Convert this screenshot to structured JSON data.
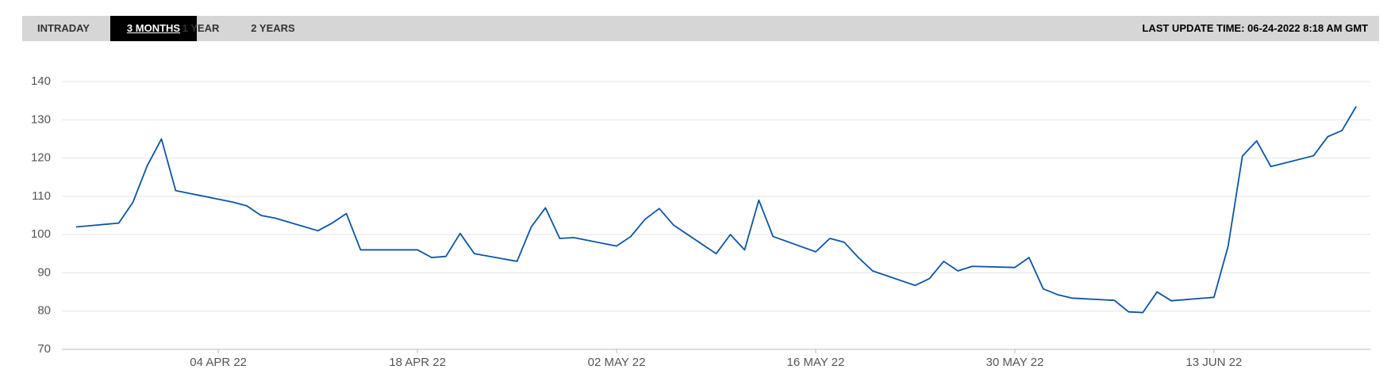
{
  "tabs": [
    "INTRADAY",
    "3 MONTHS",
    "1 YEAR",
    "2 YEARS"
  ],
  "active_tab": 1,
  "last_update": "LAST UPDATE TIME: 06-24-2022 8:18 AM GMT",
  "chart_data": {
    "type": "line",
    "x": [
      "2022-03-25",
      "2022-03-28",
      "2022-03-29",
      "2022-03-30",
      "2022-03-31",
      "2022-04-01",
      "2022-04-05",
      "2022-04-06",
      "2022-04-07",
      "2022-04-08",
      "2022-04-11",
      "2022-04-12",
      "2022-04-13",
      "2022-04-14",
      "2022-04-18",
      "2022-04-19",
      "2022-04-20",
      "2022-04-21",
      "2022-04-22",
      "2022-04-25",
      "2022-04-26",
      "2022-04-27",
      "2022-04-28",
      "2022-04-29",
      "2022-05-02",
      "2022-05-03",
      "2022-05-04",
      "2022-05-05",
      "2022-05-06",
      "2022-05-09",
      "2022-05-10",
      "2022-05-11",
      "2022-05-12",
      "2022-05-13",
      "2022-05-16",
      "2022-05-17",
      "2022-05-18",
      "2022-05-19",
      "2022-05-20",
      "2022-05-23",
      "2022-05-24",
      "2022-05-25",
      "2022-05-26",
      "2022-05-27",
      "2022-05-30",
      "2022-05-31",
      "2022-06-01",
      "2022-06-02",
      "2022-06-03",
      "2022-06-06",
      "2022-06-07",
      "2022-06-08",
      "2022-06-09",
      "2022-06-10",
      "2022-06-13",
      "2022-06-14",
      "2022-06-15",
      "2022-06-16",
      "2022-06-17",
      "2022-06-20",
      "2022-06-21",
      "2022-06-22",
      "2022-06-23"
    ],
    "series": [
      {
        "color": "#0b55a6",
        "values": [
          102,
          103,
          108.5,
          118,
          125,
          111.5,
          108.5,
          107.5,
          105,
          104.3,
          101,
          103,
          105.5,
          96,
          96,
          94,
          94.3,
          100.3,
          95,
          93,
          102,
          107,
          99,
          99.2,
          97,
          99.5,
          104,
          106.8,
          102.5,
          95,
          100,
          96,
          109,
          99.5,
          95.5,
          99,
          98,
          94,
          90.5,
          86.7,
          88.5,
          93,
          90.5,
          91.7,
          91.4,
          94,
          85.8,
          84.3,
          83.4,
          82.8,
          79.8,
          79.6,
          85,
          82.7,
          83.6,
          97,
          120.5,
          124.5,
          117.8,
          120.6,
          125.6,
          127.2,
          133.5
        ]
      }
    ],
    "xlim": [
      "2022-03-24",
      "2022-06-24"
    ],
    "xticks": [
      {
        "value": "2022-04-04",
        "label": "04 APR 22"
      },
      {
        "value": "2022-04-18",
        "label": "18 APR 22"
      },
      {
        "value": "2022-05-02",
        "label": "02 MAY 22"
      },
      {
        "value": "2022-05-16",
        "label": "16 MAY 22"
      },
      {
        "value": "2022-05-30",
        "label": "30 MAY 22"
      },
      {
        "value": "2022-06-13",
        "label": "13 JUN 22"
      }
    ],
    "ylim": [
      70,
      140
    ],
    "yticks": [
      70,
      80,
      90,
      100,
      110,
      120,
      130,
      140
    ],
    "grid": true
  }
}
